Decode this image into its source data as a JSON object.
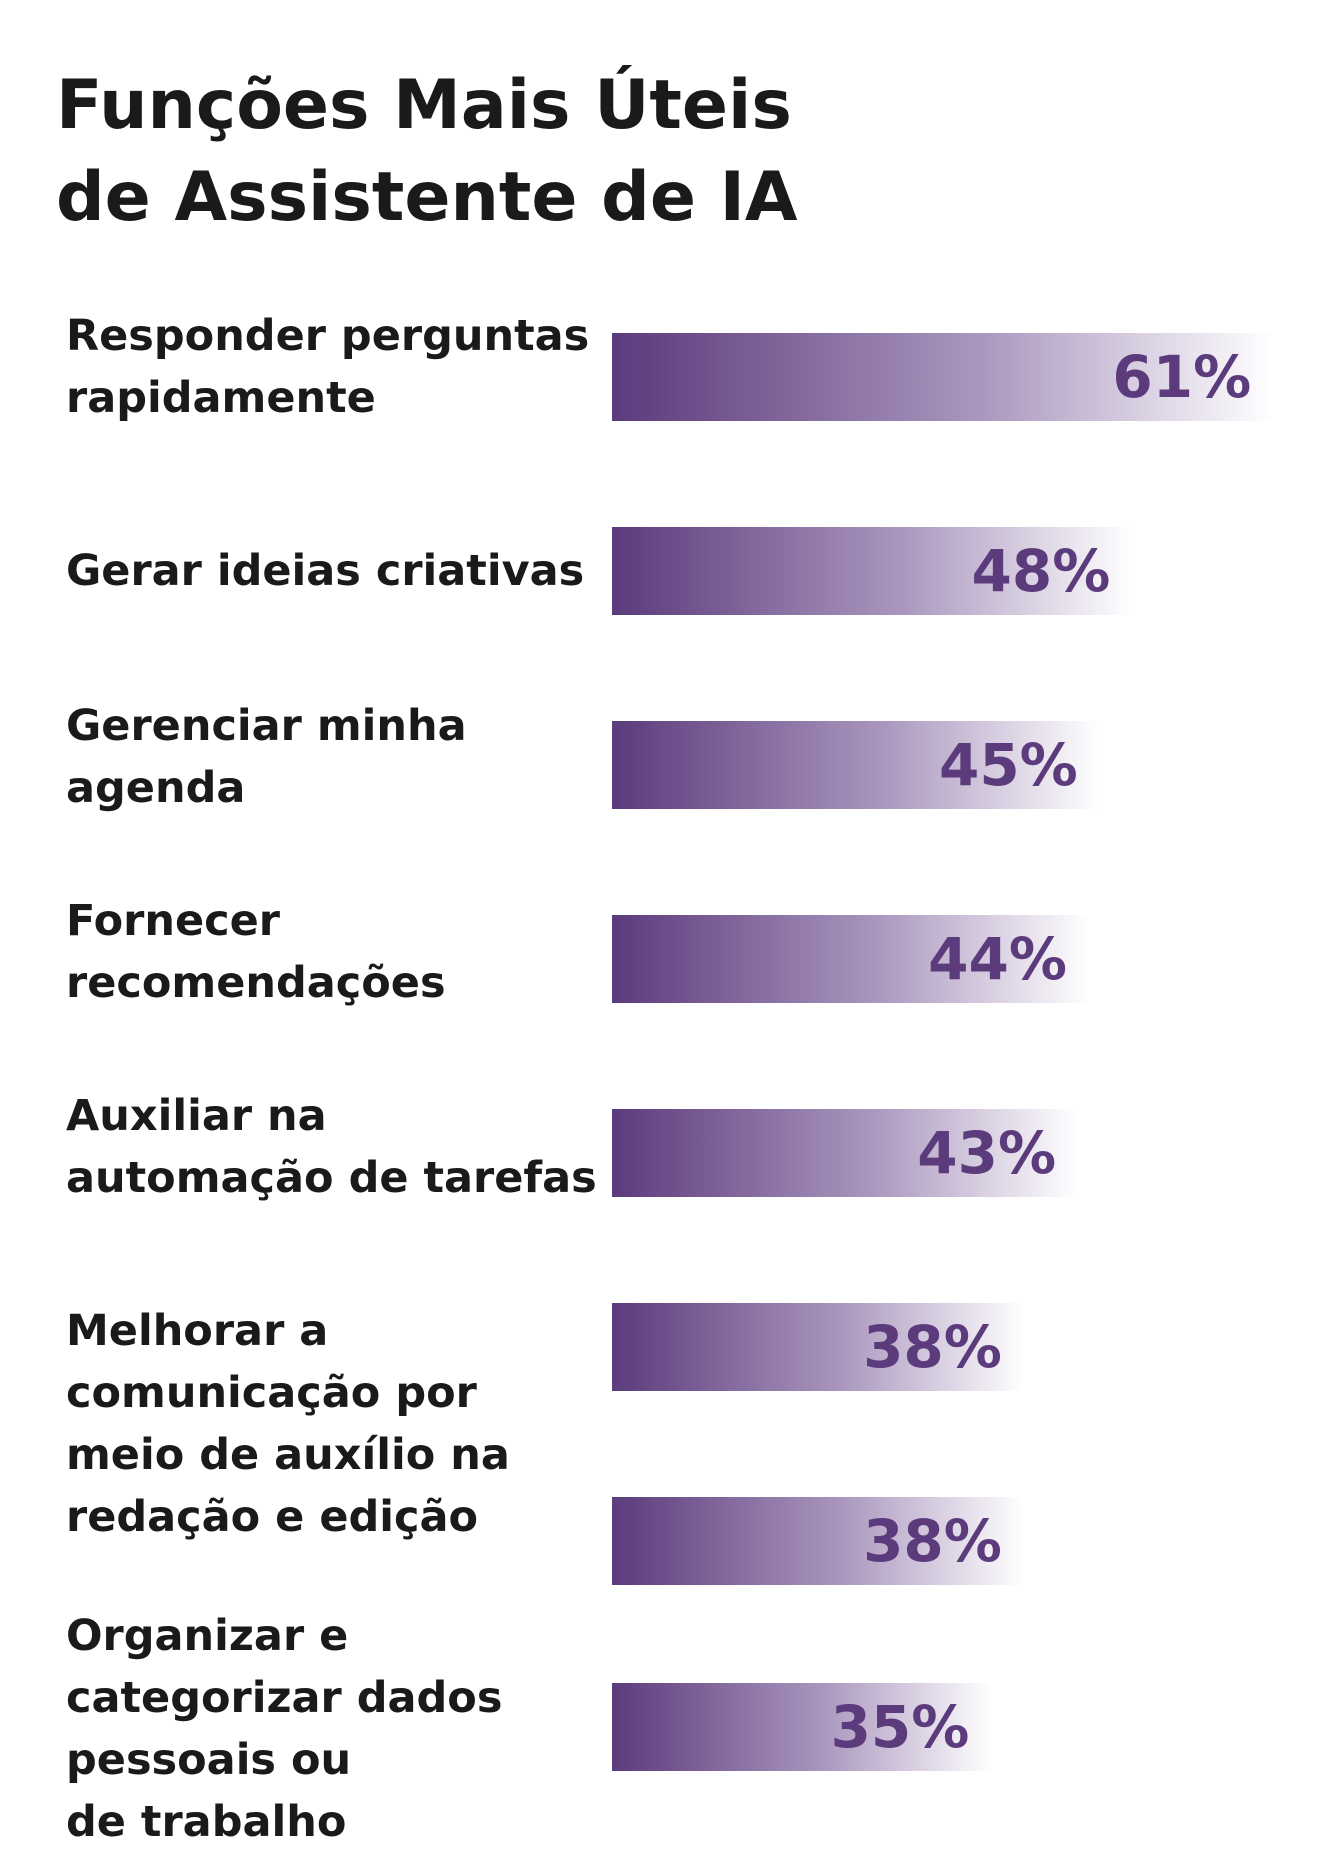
{
  "chart_data": {
    "type": "bar",
    "orientation": "horizontal",
    "title": "Funções Mais Úteis de Assistente de IA",
    "title_lines": [
      "Funções Mais Úteis",
      "de Assistente de IA"
    ],
    "bars": [
      {
        "label_lines": [
          "Responder perguntas",
          "rapidamente"
        ],
        "value": 61,
        "value_label": "61%"
      },
      {
        "label_lines": [
          "Gerar ideias criativas"
        ],
        "value": 48,
        "value_label": "48%"
      },
      {
        "label_lines": [
          "Gerenciar minha",
          "agenda"
        ],
        "value": 45,
        "value_label": "45%"
      },
      {
        "label_lines": [
          "Fornecer",
          "recomendações"
        ],
        "value": 44,
        "value_label": "44%"
      },
      {
        "label_lines": [
          "Auxiliar na",
          "automação de tarefas"
        ],
        "value": 43,
        "value_label": "43%"
      },
      {
        "label_lines": [
          "Melhorar a",
          "comunicação por",
          "meio de auxílio na",
          "redação e edição"
        ],
        "value": 38,
        "value_label": "38%"
      },
      {
        "label_lines": [],
        "value": 38,
        "value_label": "38%"
      },
      {
        "label_lines": [
          "Organizar e",
          "categorizar dados",
          "pessoais ou",
          "de trabalho"
        ],
        "value": 35,
        "value_label": "35%"
      }
    ],
    "xlim": [
      0,
      70
    ],
    "grid": false,
    "legend": "none",
    "colors": {
      "bar_dark": "#5b3b7c",
      "bar_light": "#ffffff",
      "value_text": "#5b3b7c",
      "text": "#1a1a1a"
    }
  }
}
